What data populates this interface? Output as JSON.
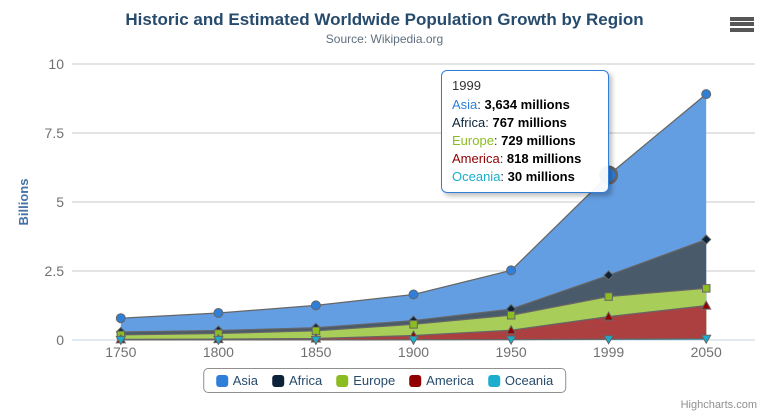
{
  "header": {
    "title": "Historic and Estimated Worldwide Population Growth by Region",
    "subtitle": "Source: Wikipedia.org"
  },
  "menu": {
    "icon": "hamburger-icon"
  },
  "credits": "Highcharts.com",
  "yaxis": {
    "title": "Billions",
    "ticks": [
      {
        "label": "0",
        "value": 0
      },
      {
        "label": "2.5",
        "value": 2.5
      },
      {
        "label": "5",
        "value": 5
      },
      {
        "label": "7.5",
        "value": 7.5
      },
      {
        "label": "10",
        "value": 10
      }
    ]
  },
  "xaxis": {
    "categories": [
      "1750",
      "1800",
      "1850",
      "1900",
      "1950",
      "1999",
      "2050"
    ]
  },
  "legend": {
    "items": [
      {
        "label": "Asia",
        "color": "#2f7ed8"
      },
      {
        "label": "Africa",
        "color": "#0d233a"
      },
      {
        "label": "Europe",
        "color": "#8bbc21"
      },
      {
        "label": "America",
        "color": "#910000"
      },
      {
        "label": "Oceania",
        "color": "#1aadce"
      }
    ]
  },
  "tooltip": {
    "header": "1999",
    "rows": [
      {
        "name": "Asia",
        "color": "#2f7ed8",
        "value": "3,634 millions"
      },
      {
        "name": "Africa",
        "color": "#0d233a",
        "value": "767 millions"
      },
      {
        "name": "Europe",
        "color": "#8bbc21",
        "value": "729 millions"
      },
      {
        "name": "America",
        "color": "#910000",
        "value": "818 millions"
      },
      {
        "name": "Oceania",
        "color": "#1aadce",
        "value": "30 millions"
      }
    ]
  },
  "chart_data": {
    "type": "area",
    "stacking": "normal",
    "title": "Historic and Estimated Worldwide Population Growth by Region",
    "subtitle": "Source: Wikipedia.org",
    "categories": [
      "1750",
      "1800",
      "1850",
      "1900",
      "1950",
      "1999",
      "2050"
    ],
    "value_unit": "millions",
    "y_unit": "billions",
    "ylabel": "Billions",
    "ylim": [
      0,
      10
    ],
    "grid": true,
    "legend_position": "bottom",
    "grid_color": "#c8c8c8",
    "axis_line_color": "#c0d0e0",
    "series_line_color": "#666666",
    "axis_label_color": "#707070",
    "yaxis_title_color": "#4572A7",
    "series": [
      {
        "name": "Asia",
        "color": "#2f7ed8",
        "fill": "#639ee2",
        "marker": "circle",
        "values": [
          502,
          635,
          809,
          947,
          1402,
          3634,
          5268
        ]
      },
      {
        "name": "Africa",
        "color": "#0d233a",
        "fill": "#495a6b",
        "marker": "diamond",
        "values": [
          106,
          107,
          111,
          133,
          221,
          767,
          1766
        ]
      },
      {
        "name": "Europe",
        "color": "#8bbc21",
        "fill": "#a8cd58",
        "marker": "square",
        "values": [
          163,
          203,
          276,
          408,
          547,
          729,
          628
        ]
      },
      {
        "name": "America",
        "color": "#910000",
        "fill": "#ac4040",
        "marker": "triangle",
        "values": [
          18,
          31,
          54,
          156,
          339,
          818,
          1201
        ]
      },
      {
        "name": "Oceania",
        "color": "#1aadce",
        "fill": "#53c2da",
        "marker": "triangle-down",
        "values": [
          2,
          2,
          2,
          6,
          13,
          30,
          46
        ]
      }
    ],
    "hover": {
      "series": "Asia",
      "category": "1999"
    }
  }
}
